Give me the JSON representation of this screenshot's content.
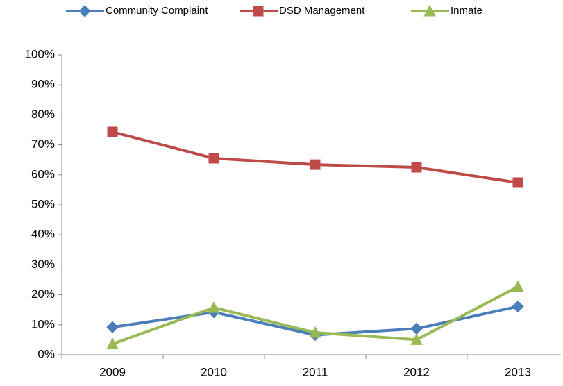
{
  "chart_data": {
    "type": "line",
    "categories": [
      "2009",
      "2010",
      "2011",
      "2012",
      "2013"
    ],
    "series": [
      {
        "name": "Community Complaint",
        "color": "#4a7ebb",
        "marker": "diamond",
        "values": [
          9.2,
          14.2,
          6.6,
          8.7,
          16.1
        ]
      },
      {
        "name": "DSD Management",
        "color": "#be4b48",
        "marker": "square",
        "values": [
          74.3,
          65.5,
          63.4,
          62.5,
          57.4
        ]
      },
      {
        "name": "Inmate",
        "color": "#98b954",
        "marker": "triangle",
        "values": [
          3.6,
          15.7,
          7.4,
          5.0,
          22.7
        ]
      }
    ],
    "ylim": [
      0,
      100
    ],
    "yticks": [
      {
        "value": 0,
        "label": "0%"
      },
      {
        "value": 10,
        "label": "10%"
      },
      {
        "value": 20,
        "label": "20%"
      },
      {
        "value": 30,
        "label": "30%"
      },
      {
        "value": 40,
        "label": "40%"
      },
      {
        "value": 50,
        "label": "50%"
      },
      {
        "value": 60,
        "label": "60%"
      },
      {
        "value": 70,
        "label": "70%"
      },
      {
        "value": 80,
        "label": "80%"
      },
      {
        "value": 90,
        "label": "90%"
      },
      {
        "value": 100,
        "label": "100%"
      }
    ],
    "legend": "top"
  }
}
